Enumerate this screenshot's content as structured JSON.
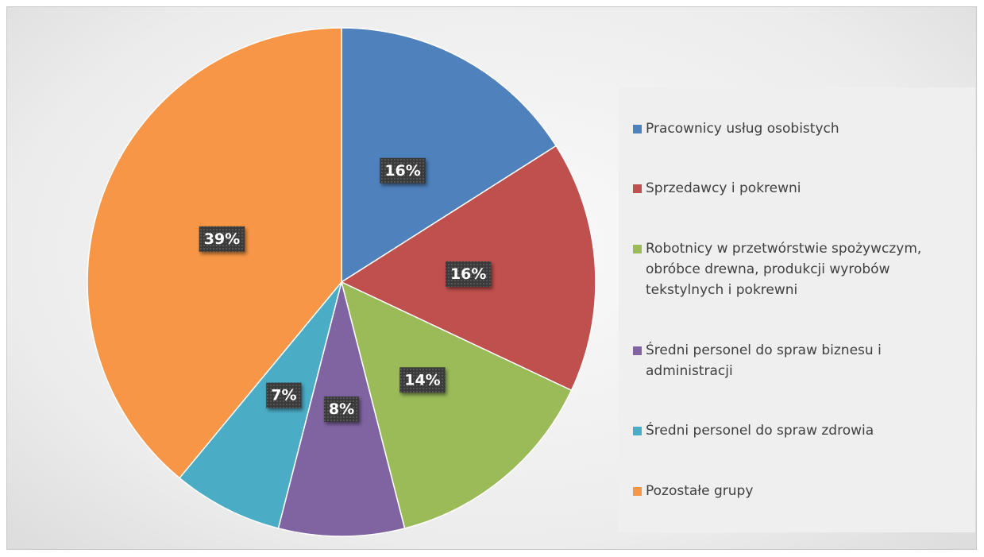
{
  "chart_data": {
    "type": "pie",
    "categories": [
      "Pracownicy usług osobistych",
      "Sprzedawcy i pokrewni",
      "Robotnicy w przetwórstwie spożywczym, obróbce drewna, produkcji wyrobów tekstylnych i pokrewni",
      "Średni personel do spraw biznesu i administracji",
      "Średni personel do spraw zdrowia",
      "Pozostałe grupy"
    ],
    "values": [
      16,
      16,
      14,
      8,
      7,
      39
    ],
    "value_labels": [
      "16%",
      "16%",
      "14%",
      "8%",
      "7%",
      "39%"
    ],
    "colors": [
      "#4f81bd",
      "#c0504d",
      "#9bbb59",
      "#8064a2",
      "#4bacc6",
      "#f79646"
    ],
    "legend": "right"
  }
}
